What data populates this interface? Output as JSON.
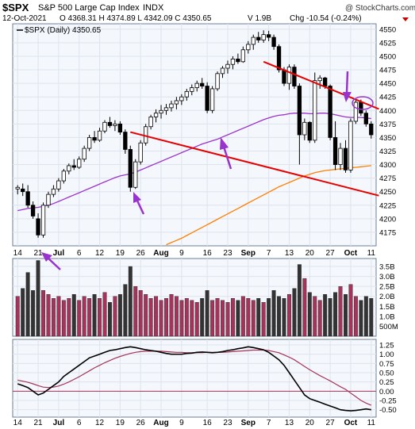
{
  "header": {
    "symbol": "$SPX",
    "name": "S&P 500 Large Cap Index",
    "tag": "INDX",
    "date": "12-Oct-2021",
    "ohlc": "O 4368.31  H 4374.89  L 4342.09  C 4350.65",
    "volume": "V 1.9B",
    "change": "Chg -10.54 (-0.24%)",
    "legend": "$SPX (Daily) 4350.65",
    "watermark": "@ StockCharts.com"
  },
  "colors": {
    "up_candle": "#ffffff",
    "down_candle": "#000000",
    "ma_short": "#9933cc",
    "ma_long": "#ff7f00",
    "trendline": "#e60000",
    "arrow": "#9933cc",
    "vol_up": "#a6335a",
    "vol_down": "#333333",
    "macd": "#000000",
    "signal": "#a6335a",
    "grid": "#dde4ee",
    "panel_bg": "#f4f7fc"
  },
  "x_axis": {
    "labels": [
      "14",
      "21",
      "Jul",
      "6",
      "12",
      "19",
      "26",
      "Aug",
      "9",
      "16",
      "23",
      "Sep",
      "7",
      "13",
      "20",
      "27",
      "Oct",
      "11"
    ],
    "bold_labels": [
      "Jul",
      "Aug",
      "Sep",
      "Oct"
    ]
  },
  "chart_data": {
    "type": "candlestick",
    "price": {
      "ylim": [
        4150,
        4560
      ],
      "y_ticks": [
        4175,
        4200,
        4225,
        4250,
        4275,
        4300,
        4325,
        4350,
        4375,
        4400,
        4425,
        4450,
        4475,
        4500,
        4525,
        4550
      ],
      "candles": [
        {
          "o": 4255,
          "h": 4262,
          "l": 4245,
          "c": 4258
        },
        {
          "o": 4255,
          "h": 4265,
          "l": 4242,
          "c": 4250
        },
        {
          "o": 4250,
          "h": 4262,
          "l": 4220,
          "c": 4225
        },
        {
          "o": 4225,
          "h": 4232,
          "l": 4200,
          "c": 4205
        },
        {
          "o": 4200,
          "h": 4210,
          "l": 4165,
          "c": 4170
        },
        {
          "o": 4170,
          "h": 4230,
          "l": 4165,
          "c": 4225
        },
        {
          "o": 4225,
          "h": 4250,
          "l": 4220,
          "c": 4245
        },
        {
          "o": 4245,
          "h": 4262,
          "l": 4240,
          "c": 4255
        },
        {
          "o": 4255,
          "h": 4275,
          "l": 4250,
          "c": 4270
        },
        {
          "o": 4270,
          "h": 4292,
          "l": 4265,
          "c": 4288
        },
        {
          "o": 4288,
          "h": 4302,
          "l": 4282,
          "c": 4298
        },
        {
          "o": 4298,
          "h": 4310,
          "l": 4290,
          "c": 4295
        },
        {
          "o": 4295,
          "h": 4315,
          "l": 4292,
          "c": 4310
        },
        {
          "o": 4310,
          "h": 4335,
          "l": 4305,
          "c": 4330
        },
        {
          "o": 4330,
          "h": 4355,
          "l": 4325,
          "c": 4350
        },
        {
          "o": 4350,
          "h": 4362,
          "l": 4340,
          "c": 4345
        },
        {
          "o": 4345,
          "h": 4368,
          "l": 4342,
          "c": 4362
        },
        {
          "o": 4362,
          "h": 4382,
          "l": 4358,
          "c": 4378
        },
        {
          "o": 4378,
          "h": 4388,
          "l": 4368,
          "c": 4372
        },
        {
          "o": 4372,
          "h": 4382,
          "l": 4362,
          "c": 4375
        },
        {
          "o": 4375,
          "h": 4380,
          "l": 4355,
          "c": 4360
        },
        {
          "o": 4360,
          "h": 4365,
          "l": 4320,
          "c": 4328
        },
        {
          "o": 4328,
          "h": 4335,
          "l": 4250,
          "c": 4258
        },
        {
          "o": 4258,
          "h": 4310,
          "l": 4255,
          "c": 4305
        },
        {
          "o": 4305,
          "h": 4345,
          "l": 4300,
          "c": 4340
        },
        {
          "o": 4340,
          "h": 4375,
          "l": 4335,
          "c": 4370
        },
        {
          "o": 4370,
          "h": 4392,
          "l": 4365,
          "c": 4388
        },
        {
          "o": 4388,
          "h": 4402,
          "l": 4378,
          "c": 4395
        },
        {
          "o": 4395,
          "h": 4410,
          "l": 4385,
          "c": 4400
        },
        {
          "o": 4400,
          "h": 4412,
          "l": 4392,
          "c": 4405
        },
        {
          "o": 4405,
          "h": 4418,
          "l": 4398,
          "c": 4412
        },
        {
          "o": 4412,
          "h": 4425,
          "l": 4402,
          "c": 4418
        },
        {
          "o": 4418,
          "h": 4430,
          "l": 4410,
          "c": 4425
        },
        {
          "o": 4425,
          "h": 4440,
          "l": 4418,
          "c": 4435
        },
        {
          "o": 4435,
          "h": 4448,
          "l": 4428,
          "c": 4442
        },
        {
          "o": 4442,
          "h": 4455,
          "l": 4435,
          "c": 4450
        },
        {
          "o": 4450,
          "h": 4460,
          "l": 4440,
          "c": 4445
        },
        {
          "o": 4445,
          "h": 4452,
          "l": 4395,
          "c": 4400
        },
        {
          "o": 4400,
          "h": 4445,
          "l": 4395,
          "c": 4440
        },
        {
          "o": 4440,
          "h": 4472,
          "l": 4436,
          "c": 4468
        },
        {
          "o": 4468,
          "h": 4482,
          "l": 4460,
          "c": 4478
        },
        {
          "o": 4478,
          "h": 4492,
          "l": 4468,
          "c": 4485
        },
        {
          "o": 4485,
          "h": 4500,
          "l": 4476,
          "c": 4495
        },
        {
          "o": 4495,
          "h": 4505,
          "l": 4486,
          "c": 4490
        },
        {
          "o": 4490,
          "h": 4518,
          "l": 4488,
          "c": 4512
        },
        {
          "o": 4512,
          "h": 4528,
          "l": 4505,
          "c": 4522
        },
        {
          "o": 4522,
          "h": 4540,
          "l": 4512,
          "c": 4535
        },
        {
          "o": 4535,
          "h": 4545,
          "l": 4525,
          "c": 4530
        },
        {
          "o": 4530,
          "h": 4548,
          "l": 4525,
          "c": 4540
        },
        {
          "o": 4540,
          "h": 4547,
          "l": 4528,
          "c": 4535
        },
        {
          "o": 4535,
          "h": 4540,
          "l": 4512,
          "c": 4518
        },
        {
          "o": 4518,
          "h": 4522,
          "l": 4470,
          "c": 4475
        },
        {
          "o": 4475,
          "h": 4480,
          "l": 4445,
          "c": 4450
        },
        {
          "o": 4450,
          "h": 4485,
          "l": 4438,
          "c": 4480
        },
        {
          "o": 4480,
          "h": 4485,
          "l": 4440,
          "c": 4445
        },
        {
          "o": 4445,
          "h": 4450,
          "l": 4300,
          "c": 4355
        },
        {
          "o": 4355,
          "h": 4385,
          "l": 4345,
          "c": 4378
        },
        {
          "o": 4378,
          "h": 4380,
          "l": 4340,
          "c": 4345
        },
        {
          "o": 4345,
          "h": 4470,
          "l": 4340,
          "c": 4455
        },
        {
          "o": 4455,
          "h": 4465,
          "l": 4440,
          "c": 4460
        },
        {
          "o": 4460,
          "h": 4462,
          "l": 4440,
          "c": 4445
        },
        {
          "o": 4445,
          "h": 4448,
          "l": 4345,
          "c": 4350
        },
        {
          "o": 4350,
          "h": 4380,
          "l": 4290,
          "c": 4300
        },
        {
          "o": 4300,
          "h": 4340,
          "l": 4290,
          "c": 4330
        },
        {
          "o": 4330,
          "h": 4345,
          "l": 4285,
          "c": 4290
        },
        {
          "o": 4290,
          "h": 4385,
          "l": 4285,
          "c": 4380
        },
        {
          "o": 4380,
          "h": 4420,
          "l": 4375,
          "c": 4415
        },
        {
          "o": 4415,
          "h": 4420,
          "l": 4390,
          "c": 4395
        },
        {
          "o": 4395,
          "h": 4400,
          "l": 4370,
          "c": 4375
        },
        {
          "o": 4375,
          "h": 4380,
          "l": 4348,
          "c": 4355
        }
      ],
      "ma_short": [
        4215,
        4217,
        4219,
        4220,
        4221,
        4223,
        4225,
        4228,
        4232,
        4236,
        4240,
        4244,
        4248,
        4252,
        4256,
        4260,
        4264,
        4268,
        4272,
        4276,
        4279,
        4281,
        4283,
        4286,
        4290,
        4294,
        4298,
        4302,
        4306,
        4310,
        4314,
        4318,
        4322,
        4326,
        4330,
        4334,
        4338,
        4341,
        4344,
        4347,
        4351,
        4355,
        4359,
        4363,
        4367,
        4371,
        4375,
        4379,
        4383,
        4386,
        4389,
        4391,
        4392,
        4394,
        4395,
        4395,
        4395,
        4394,
        4394,
        4395,
        4395,
        4394,
        4392,
        4390,
        4388,
        4387,
        4387,
        4387,
        4386,
        4385
      ],
      "ma_long": [
        null,
        null,
        null,
        null,
        null,
        null,
        null,
        null,
        null,
        null,
        null,
        null,
        null,
        null,
        null,
        null,
        null,
        null,
        null,
        null,
        null,
        null,
        null,
        null,
        null,
        null,
        null,
        null,
        null,
        4152,
        4156,
        4160,
        4164,
        4169,
        4174,
        4179,
        4184,
        4189,
        4194,
        4199,
        4204,
        4209,
        4214,
        4219,
        4224,
        4229,
        4234,
        4239,
        4244,
        4249,
        4254,
        4259,
        4263,
        4267,
        4271,
        4275,
        4279,
        4282,
        4285,
        4287,
        4289,
        4290,
        4291,
        4292,
        4293,
        4294,
        4295,
        4296,
        4297,
        4298
      ],
      "trendlines": [
        {
          "from": [
            22,
            4360
          ],
          "to": [
            69,
            4250
          ]
        },
        {
          "from": [
            48,
            4490
          ],
          "to": [
            69,
            4410
          ]
        }
      ]
    },
    "volume": {
      "ylim": [
        0,
        3.9
      ],
      "y_ticks": [
        "500M",
        "1.0B",
        "1.5B",
        "2.0B",
        "2.5B",
        "3.0B",
        "3.5B"
      ],
      "y_tick_values": [
        0.5,
        1.0,
        1.5,
        2.0,
        2.5,
        3.0,
        3.5
      ],
      "values": [
        2.0,
        2.4,
        3.2,
        2.3,
        3.8,
        2.3,
        2.1,
        1.9,
        2.0,
        1.8,
        1.9,
        2.1,
        1.8,
        2.0,
        1.9,
        2.1,
        1.9,
        2.2,
        1.7,
        2.0,
        2.1,
        2.6,
        3.5,
        2.5,
        2.3,
        2.1,
        1.9,
        2.0,
        1.8,
        1.9,
        2.1,
        2.0,
        1.8,
        1.9,
        1.8,
        1.7,
        1.9,
        2.3,
        1.8,
        1.9,
        1.8,
        1.7,
        1.9,
        1.8,
        2.0,
        1.9,
        1.8,
        1.9,
        1.7,
        1.9,
        2.3,
        2.0,
        1.9,
        2.1,
        2.4,
        3.6,
        2.9,
        2.2,
        2.0,
        1.8,
        2.1,
        1.9,
        2.2,
        2.5,
        2.1,
        2.6,
        2.0,
        1.8,
        2.0,
        1.9
      ]
    },
    "macd": {
      "ylim": [
        -0.7,
        1.4
      ],
      "y_ticks": [
        "-0.50",
        "-0.25",
        "0.00",
        "0.25",
        "0.50",
        "0.75",
        "1.00",
        "1.25"
      ],
      "y_tick_values": [
        -0.5,
        -0.25,
        0,
        0.25,
        0.5,
        0.75,
        1.0,
        1.25
      ],
      "macd": [
        0.2,
        0.15,
        0.1,
        0.0,
        -0.1,
        -0.05,
        0.05,
        0.15,
        0.25,
        0.4,
        0.5,
        0.6,
        0.7,
        0.8,
        0.9,
        0.95,
        1.0,
        1.05,
        1.1,
        1.12,
        1.15,
        1.18,
        1.2,
        1.18,
        1.15,
        1.12,
        1.1,
        1.08,
        1.05,
        1.02,
        1.0,
        1.0,
        1.0,
        1.02,
        1.03,
        1.05,
        1.06,
        1.05,
        1.04,
        1.05,
        1.07,
        1.1,
        1.12,
        1.15,
        1.17,
        1.2,
        1.18,
        1.15,
        1.12,
        1.05,
        0.95,
        0.85,
        0.7,
        0.5,
        0.3,
        0.1,
        -0.1,
        -0.2,
        -0.25,
        -0.3,
        -0.35,
        -0.4,
        -0.45,
        -0.5,
        -0.52,
        -0.53,
        -0.52,
        -0.5,
        -0.48,
        -0.5
      ],
      "signal": [
        0.3,
        0.27,
        0.24,
        0.2,
        0.15,
        0.11,
        0.1,
        0.11,
        0.14,
        0.19,
        0.25,
        0.32,
        0.39,
        0.47,
        0.55,
        0.63,
        0.7,
        0.77,
        0.83,
        0.89,
        0.94,
        0.98,
        1.02,
        1.05,
        1.07,
        1.08,
        1.08,
        1.08,
        1.08,
        1.07,
        1.06,
        1.05,
        1.05,
        1.04,
        1.04,
        1.04,
        1.04,
        1.05,
        1.05,
        1.05,
        1.05,
        1.06,
        1.07,
        1.08,
        1.09,
        1.1,
        1.11,
        1.11,
        1.11,
        1.1,
        1.07,
        1.04,
        0.98,
        0.92,
        0.85,
        0.76,
        0.67,
        0.58,
        0.5,
        0.42,
        0.35,
        0.28,
        0.2,
        0.12,
        0.05,
        -0.05,
        -0.15,
        -0.25,
        -0.32,
        -0.38
      ],
      "zero_line": 0
    }
  }
}
